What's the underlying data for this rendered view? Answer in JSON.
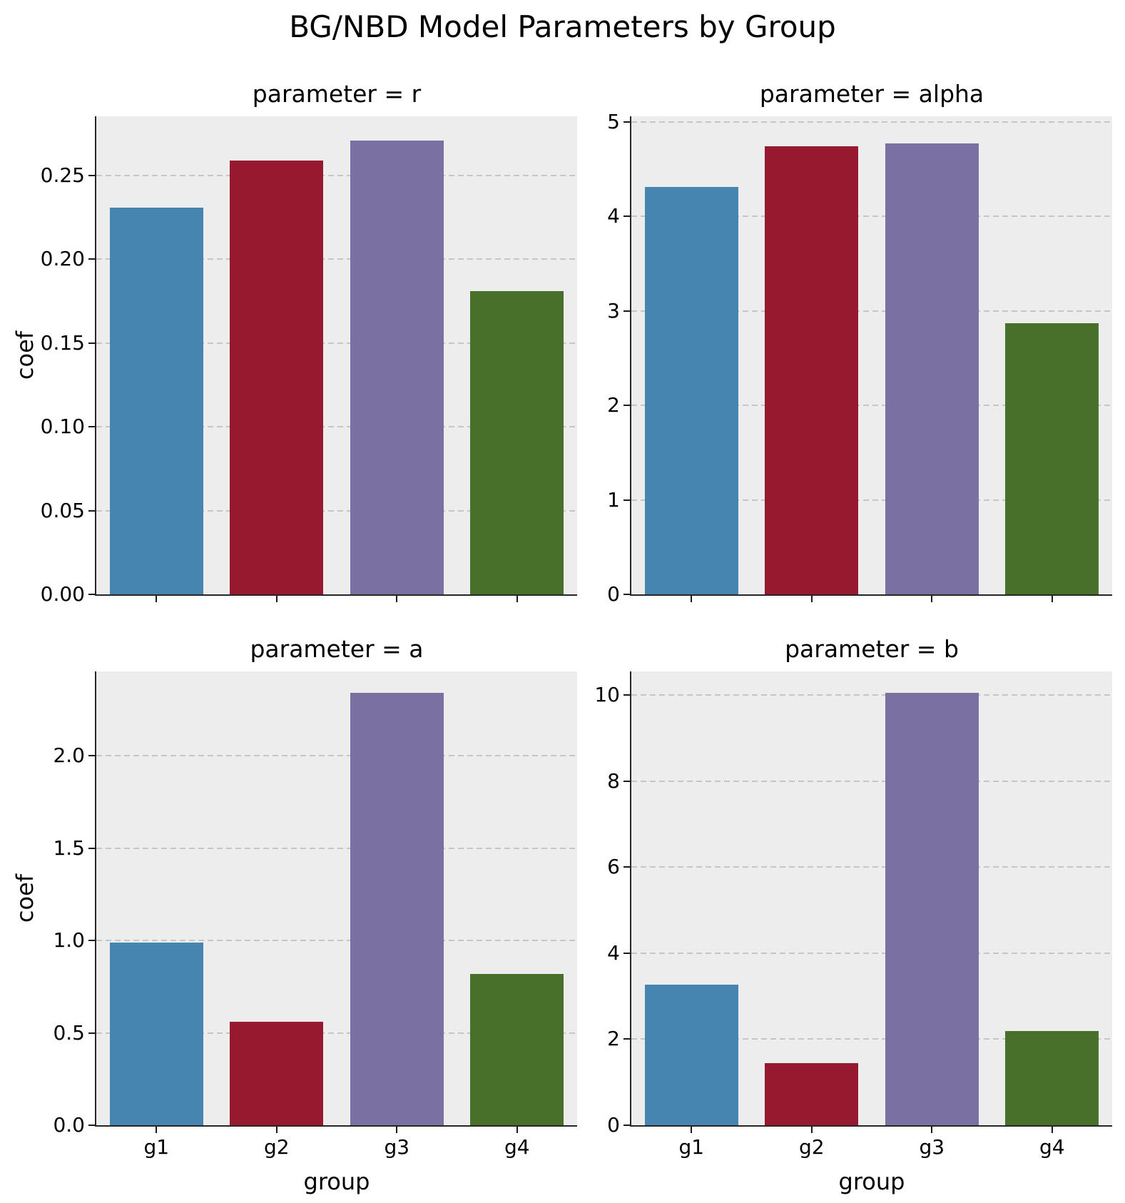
{
  "title": "BG/NBD Model Parameters by Group",
  "style": {
    "axes_background": "#ededed",
    "grid_color": "#c6c6c6",
    "spine_color": "#262626",
    "bar_colors": [
      "#4685b0",
      "#97192f",
      "#7b70a2",
      "#48702b"
    ]
  },
  "groups": [
    "g1",
    "g2",
    "g3",
    "g4"
  ],
  "chart_data": [
    {
      "type": "bar",
      "title": "parameter = r",
      "parameter": "r",
      "categories": [
        "g1",
        "g2",
        "g3",
        "g4"
      ],
      "values": [
        0.231,
        0.259,
        0.271,
        0.181
      ],
      "ylabel": "coef",
      "xlabel": "",
      "ylim": [
        0,
        0.2853
      ],
      "ytick_values": [
        0,
        0.05,
        0.1,
        0.15,
        0.2,
        0.25
      ],
      "ytick_labels": [
        "0.00",
        "0.05",
        "0.10",
        "0.15",
        "0.20",
        "0.25"
      ],
      "grid": "horizontal-dashed",
      "legend": "none",
      "show_xtick_labels": false,
      "show_ylabel": true,
      "show_xlabel": false
    },
    {
      "type": "bar",
      "title": "parameter = alpha",
      "parameter": "alpha",
      "categories": [
        "g1",
        "g2",
        "g3",
        "g4"
      ],
      "values": [
        4.31,
        4.74,
        4.77,
        2.87
      ],
      "ylabel": "coef",
      "xlabel": "",
      "ylim": [
        0,
        5.06
      ],
      "ytick_values": [
        0,
        1,
        2,
        3,
        4,
        5
      ],
      "ytick_labels": [
        "0",
        "1",
        "2",
        "3",
        "4",
        "5"
      ],
      "grid": "horizontal-dashed",
      "legend": "none",
      "show_xtick_labels": false,
      "show_ylabel": false,
      "show_xlabel": false
    },
    {
      "type": "bar",
      "title": "parameter = a",
      "parameter": "a",
      "categories": [
        "g1",
        "g2",
        "g3",
        "g4"
      ],
      "values": [
        0.99,
        0.56,
        2.34,
        0.82
      ],
      "ylabel": "coef",
      "xlabel": "group",
      "ylim": [
        0,
        2.457
      ],
      "ytick_values": [
        0,
        0.5,
        1.0,
        1.5,
        2.0
      ],
      "ytick_labels": [
        "0.0",
        "0.5",
        "1.0",
        "1.5",
        "2.0"
      ],
      "grid": "horizontal-dashed",
      "legend": "none",
      "show_xtick_labels": true,
      "show_ylabel": true,
      "show_xlabel": true
    },
    {
      "type": "bar",
      "title": "parameter = b",
      "parameter": "b",
      "categories": [
        "g1",
        "g2",
        "g3",
        "g4"
      ],
      "values": [
        3.26,
        1.44,
        10.05,
        2.19
      ],
      "ylabel": "coef",
      "xlabel": "group",
      "ylim": [
        0,
        10.55
      ],
      "ytick_values": [
        0,
        2,
        4,
        6,
        8,
        10
      ],
      "ytick_labels": [
        "0",
        "2",
        "4",
        "6",
        "8",
        "10"
      ],
      "grid": "horizontal-dashed",
      "legend": "none",
      "show_xtick_labels": true,
      "show_ylabel": false,
      "show_xlabel": true
    }
  ]
}
